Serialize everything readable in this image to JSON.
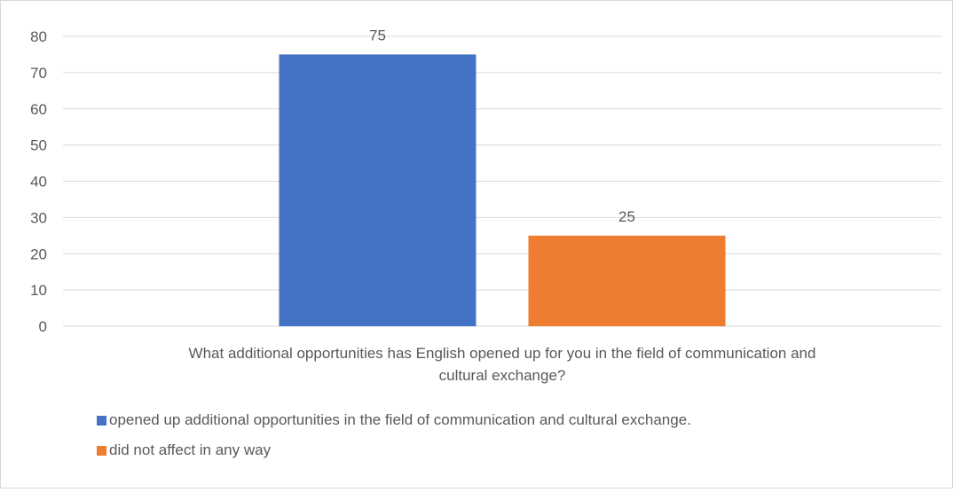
{
  "chart_data": {
    "type": "bar",
    "title": "",
    "xlabel": "",
    "ylabel": "",
    "ylim": [
      0,
      80
    ],
    "yticks": [
      0,
      10,
      20,
      30,
      40,
      50,
      60,
      70,
      80
    ],
    "grid": true,
    "category_label_lines": [
      "What additional opportunities has English opened up for you in the field of communication and",
      "cultural exchange?"
    ],
    "legend_position": "bottom-left",
    "series": [
      {
        "name": "opened up additional opportunities in the field of communication and cultural exchange.",
        "value": 75,
        "label": "75",
        "color": "#4472C4"
      },
      {
        "name": "did not affect in any way",
        "value": 25,
        "label": "25",
        "color": "#ED7D31"
      }
    ]
  }
}
